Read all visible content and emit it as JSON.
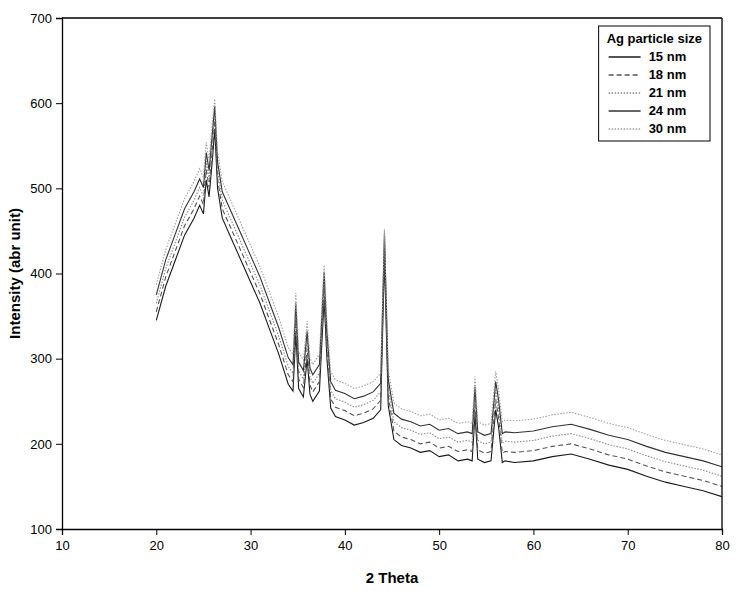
{
  "chart_data": {
    "type": "line",
    "x_label": "2 Theta",
    "y_label": "Intensity (abr unit)",
    "legend_title": "Ag particle size",
    "legend": "top-right",
    "grid": false,
    "xlim": [
      10,
      80
    ],
    "xticks": [
      10,
      20,
      30,
      40,
      50,
      60,
      70,
      80
    ],
    "ylim": [
      100,
      700
    ],
    "yticks": [
      100,
      200,
      300,
      400,
      500,
      600,
      700
    ],
    "x": [
      20,
      21,
      22,
      23,
      24,
      24.6,
      25.0,
      25.3,
      25.6,
      26.0,
      26.2,
      26.5,
      27,
      28,
      29,
      30,
      31,
      32,
      33,
      34,
      34.5,
      34.8,
      35.1,
      35.6,
      36.0,
      36.3,
      36.6,
      37.3,
      37.8,
      38.1,
      38.5,
      39,
      40,
      41,
      42,
      43,
      43.8,
      44.2,
      44.6,
      45.2,
      46,
      47,
      48,
      49,
      50,
      51,
      52,
      53,
      53.5,
      53.8,
      54.1,
      54.8,
      55.5,
      56.0,
      56.3,
      56.7,
      57,
      58,
      60,
      62,
      64,
      66,
      68,
      70,
      72,
      74,
      76,
      78,
      80
    ],
    "series": [
      {
        "name": "15 nm",
        "color": "#1a1a1a",
        "line_style": "solid",
        "values": [
          345,
          385,
          415,
          445,
          465,
          480,
          470,
          510,
          490,
          540,
          570,
          500,
          465,
          440,
          415,
          390,
          365,
          335,
          305,
          270,
          262,
          330,
          265,
          255,
          300,
          258,
          250,
          262,
          370,
          300,
          242,
          232,
          228,
          222,
          225,
          230,
          240,
          420,
          245,
          205,
          198,
          195,
          190,
          192,
          185,
          187,
          180,
          182,
          180,
          235,
          182,
          178,
          180,
          240,
          220,
          178,
          180,
          178,
          180,
          185,
          188,
          182,
          175,
          170,
          162,
          155,
          150,
          145,
          138
        ]
      },
      {
        "name": "18 nm",
        "color": "#555555",
        "line_style": "dashed",
        "values": [
          355,
          396,
          426,
          456,
          476,
          491,
          481,
          522,
          501,
          552,
          580,
          511,
          476,
          451,
          426,
          401,
          376,
          346,
          316,
          281,
          273,
          345,
          276,
          266,
          312,
          269,
          261,
          273,
          382,
          311,
          253,
          243,
          239,
          233,
          236,
          241,
          251,
          430,
          256,
          215,
          208,
          205,
          200,
          202,
          195,
          197,
          191,
          193,
          191,
          246,
          193,
          189,
          191,
          252,
          231,
          189,
          191,
          190,
          192,
          197,
          200,
          194,
          187,
          182,
          174,
          167,
          162,
          157,
          150
        ]
      },
      {
        "name": "21 nm",
        "color": "#8a8a8a",
        "line_style": "dotted",
        "values": [
          365,
          406,
          436,
          466,
          486,
          501,
          491,
          532,
          511,
          562,
          588,
          521,
          486,
          461,
          436,
          411,
          386,
          356,
          326,
          291,
          283,
          355,
          286,
          276,
          322,
          279,
          271,
          283,
          392,
          321,
          263,
          253,
          249,
          243,
          246,
          251,
          261,
          440,
          266,
          226,
          219,
          216,
          211,
          213,
          206,
          208,
          202,
          204,
          202,
          257,
          204,
          200,
          202,
          263,
          242,
          201,
          203,
          202,
          204,
          209,
          212,
          206,
          199,
          194,
          186,
          179,
          174,
          169,
          162
        ]
      },
      {
        "name": "24 nm",
        "color": "#333333",
        "line_style": "solid",
        "values": [
          375,
          416,
          446,
          476,
          496,
          511,
          501,
          542,
          521,
          572,
          597,
          531,
          496,
          471,
          446,
          421,
          396,
          366,
          336,
          301,
          293,
          365,
          296,
          286,
          332,
          289,
          281,
          293,
          402,
          331,
          273,
          263,
          259,
          253,
          256,
          261,
          271,
          448,
          276,
          236,
          229,
          226,
          221,
          223,
          216,
          218,
          212,
          214,
          212,
          267,
          214,
          210,
          212,
          273,
          252,
          212,
          214,
          213,
          215,
          220,
          223,
          217,
          210,
          205,
          197,
          190,
          185,
          180,
          173
        ]
      },
      {
        "name": "30 nm",
        "color": "#a0a0a0",
        "line_style": "dotted",
        "values": [
          387,
          428,
          458,
          488,
          508,
          523,
          513,
          554,
          533,
          584,
          605,
          543,
          508,
          483,
          458,
          433,
          408,
          378,
          348,
          313,
          305,
          377,
          308,
          298,
          344,
          301,
          293,
          305,
          410,
          343,
          285,
          275,
          271,
          265,
          268,
          273,
          283,
          452,
          288,
          248,
          241,
          238,
          233,
          235,
          228,
          230,
          224,
          226,
          224,
          279,
          226,
          222,
          224,
          285,
          264,
          226,
          228,
          227,
          229,
          234,
          237,
          231,
          224,
          219,
          211,
          204,
          199,
          194,
          187
        ]
      }
    ]
  }
}
